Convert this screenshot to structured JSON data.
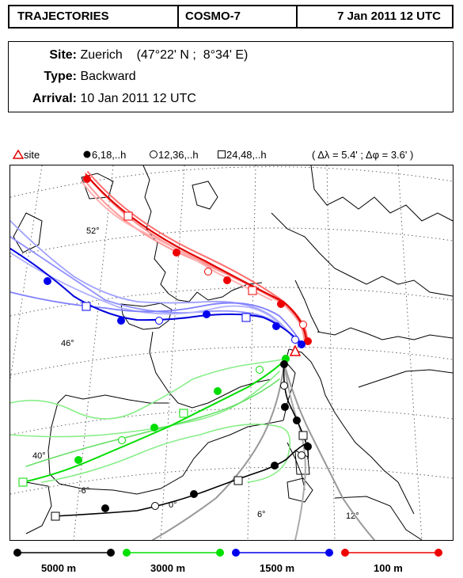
{
  "header": {
    "product": "TRAJECTORIES",
    "model": "COSMO-7",
    "date": "7 Jan 2011 12 UTC"
  },
  "info": {
    "site_label": "Site:",
    "site_value": "Zuerich    (47°22' N ;  8°34' E)",
    "type_label": "Type:",
    "type_value": "Backward",
    "arrival_label": "Arrival:",
    "arrival_value": "10 Jan 2011 12 UTC"
  },
  "legend": {
    "site": "site",
    "filled": "6,18,..h",
    "open": "12,36,..h",
    "square": "24,48,..h",
    "resolution": "( Δλ = 5.4' ; Δφ = 3.6' )"
  },
  "map": {
    "lat_labels": [
      "52°",
      "46°",
      "40°"
    ],
    "lon_labels": [
      "-6°",
      "0°",
      "6°",
      "12°"
    ]
  },
  "levels": [
    {
      "label": "5000 m",
      "color": "#000000"
    },
    {
      "label": "3000 m",
      "color": "#00e000"
    },
    {
      "label": "1500 m",
      "color": "#0000ee"
    },
    {
      "label": "100 m",
      "color": "#ee0000"
    }
  ]
}
